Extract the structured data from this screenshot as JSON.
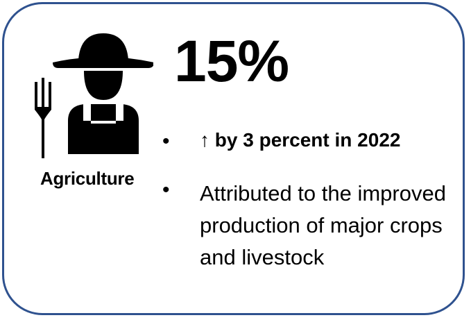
{
  "card": {
    "border_color": "#2F528F",
    "icon": "farmer-pitchfork-icon",
    "sector_label": "Agriculture",
    "stat_value": "15%",
    "bullets": [
      {
        "text": "↑ by 3 percent in 2022",
        "bold": true
      },
      {
        "text": "Attributed to the improved production of major crops and livestock",
        "bold": false
      }
    ]
  }
}
